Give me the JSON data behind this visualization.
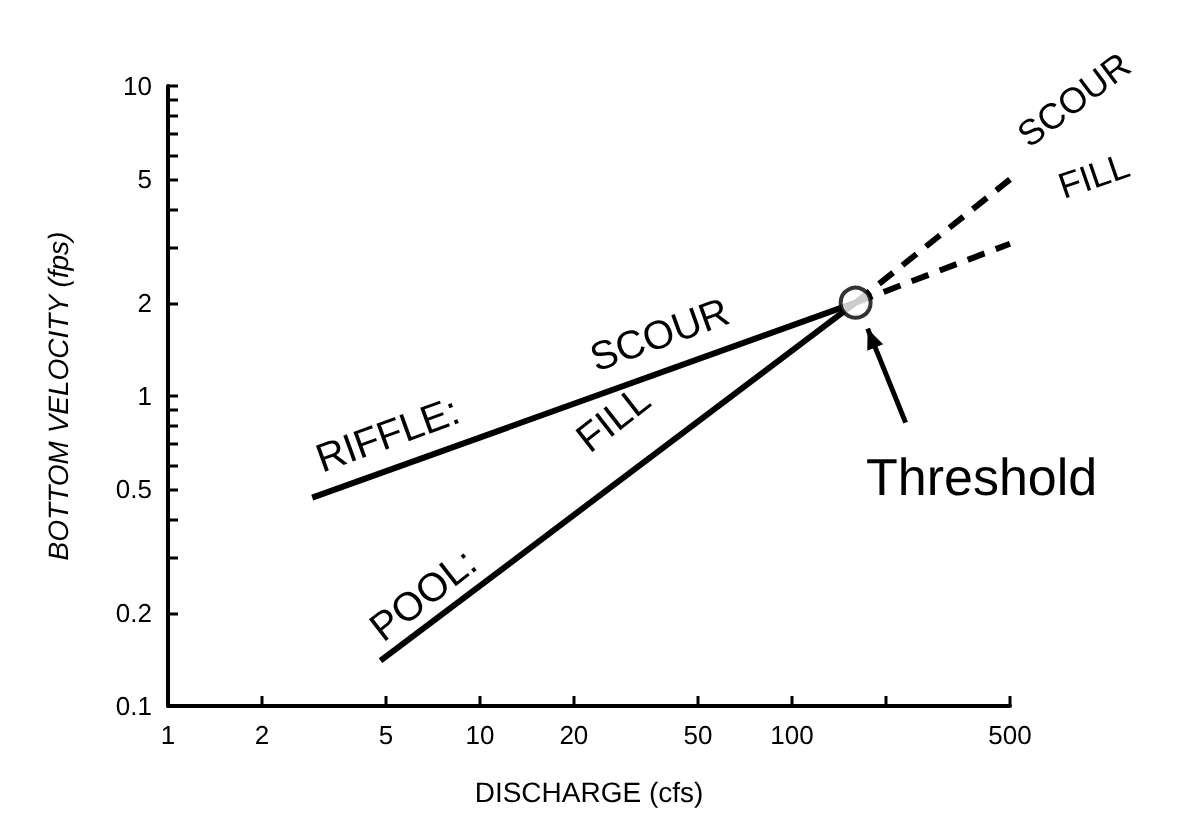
{
  "chart_data": {
    "type": "line",
    "xlabel": "DISCHARGE (cfs)",
    "ylabel": "BOTTOM VELOCITY (fps)",
    "log": "xy",
    "xlim": [
      1,
      500
    ],
    "ylim": [
      0.1,
      10
    ],
    "xticks": [
      1,
      2,
      5,
      10,
      20,
      50,
      100,
      {
        "value": 200,
        "label": null
      },
      500
    ],
    "yticks": [
      0.1,
      0.2,
      {
        "value": 0.3,
        "label": null
      },
      {
        "value": 0.4,
        "label": null
      },
      0.5,
      {
        "value": 0.6,
        "label": null
      },
      {
        "value": 0.7,
        "label": null
      },
      {
        "value": 0.8,
        "label": null
      },
      {
        "value": 0.9,
        "label": null
      },
      1,
      2,
      {
        "value": 3,
        "label": null
      },
      {
        "value": 4,
        "label": null
      },
      5,
      {
        "value": 6,
        "label": null
      },
      {
        "value": 7,
        "label": null
      },
      {
        "value": 8,
        "label": null
      },
      {
        "value": 9,
        "label": null
      },
      10
    ],
    "grid": false,
    "marker": "none",
    "series": [
      {
        "color": "#000000",
        "line_style": "solid",
        "x": [
          2.9,
          160
        ],
        "values": [
          0.47,
          2
        ]
      },
      {
        "color": "#000000",
        "line_style": "solid",
        "x": [
          4.8,
          160
        ],
        "values": [
          0.14,
          2
        ]
      },
      {
        "color": "#000000",
        "line_style": "dashed",
        "x": [
          160,
          500
        ],
        "values": [
          2,
          5
        ]
      },
      {
        "color": "#000000",
        "line_style": "dashed",
        "x": [
          160,
          500
        ],
        "values": [
          2,
          3.1
        ]
      },
      {
        "type": "scatter",
        "color": "#000000",
        "marker": "circle",
        "x": [
          160
        ],
        "values": [
          2
        ]
      }
    ],
    "annotations": [
      "RIFFLE:",
      "SCOUR",
      "POOL:",
      "FILL",
      "SCOUR",
      "FILL",
      {
        "text": "Threshold",
        "x": 160,
        "y": 2
      }
    ]
  }
}
